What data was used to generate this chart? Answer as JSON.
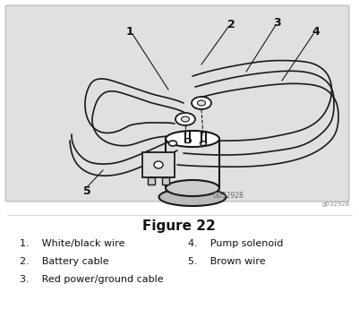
{
  "title": "Figure 22",
  "title_fontsize": 11,
  "title_fontweight": "bold",
  "line_color": "#1a1a1a",
  "label_color": "#111111",
  "figure_code": "G032928",
  "figure_code2": "g032928",
  "bg_diagram": "#e8e8e8"
}
